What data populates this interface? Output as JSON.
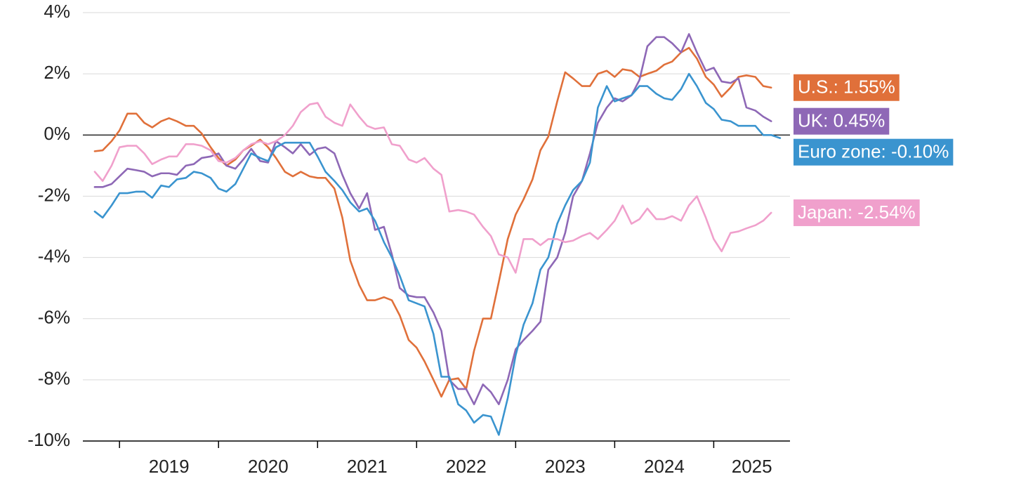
{
  "chart_data": {
    "type": "line",
    "x": [
      2018.75,
      2018.83,
      2018.92,
      2019.0,
      2019.08,
      2019.17,
      2019.25,
      2019.33,
      2019.42,
      2019.5,
      2019.58,
      2019.67,
      2019.75,
      2019.83,
      2019.92,
      2020.0,
      2020.08,
      2020.17,
      2020.25,
      2020.33,
      2020.42,
      2020.5,
      2020.58,
      2020.67,
      2020.75,
      2020.83,
      2020.92,
      2021.0,
      2021.08,
      2021.17,
      2021.25,
      2021.33,
      2021.42,
      2021.5,
      2021.58,
      2021.67,
      2021.75,
      2021.83,
      2021.92,
      2022.0,
      2022.08,
      2022.17,
      2022.25,
      2022.33,
      2022.42,
      2022.5,
      2022.58,
      2022.67,
      2022.75,
      2022.83,
      2022.92,
      2023.0,
      2023.08,
      2023.17,
      2023.25,
      2023.33,
      2023.42,
      2023.5,
      2023.58,
      2023.67,
      2023.75,
      2023.83,
      2023.92,
      2024.0,
      2024.08,
      2024.17,
      2024.25,
      2024.33,
      2024.42,
      2024.5,
      2024.58,
      2024.67,
      2024.75,
      2024.83,
      2024.92,
      2025.0,
      2025.08,
      2025.17,
      2025.25,
      2025.33,
      2025.42,
      2025.5,
      2025.58,
      2025.67
    ],
    "series": [
      {
        "name": "U.S.: 1.55%",
        "color": "#e0703a",
        "values": [
          -0.53,
          -0.5,
          -0.2,
          0.15,
          0.7,
          0.7,
          0.4,
          0.25,
          0.45,
          0.55,
          0.45,
          0.3,
          0.3,
          0.05,
          -0.4,
          -0.75,
          -1.0,
          -0.8,
          -0.5,
          -0.35,
          -0.15,
          -0.4,
          -0.75,
          -1.2,
          -1.35,
          -1.2,
          -1.35,
          -1.4,
          -1.4,
          -1.75,
          -2.7,
          -4.1,
          -4.9,
          -5.4,
          -5.4,
          -5.3,
          -5.4,
          -5.9,
          -6.7,
          -6.95,
          -7.4,
          -8.0,
          -8.55,
          -8.0,
          -7.95,
          -8.3,
          -7.05,
          -6.0,
          -6.0,
          -4.8,
          -3.4,
          -2.6,
          -2.1,
          -1.45,
          -0.5,
          -0.05,
          1.1,
          2.05,
          1.85,
          1.6,
          1.6,
          2.0,
          2.1,
          1.9,
          2.15,
          2.1,
          1.9,
          2.0,
          2.1,
          2.3,
          2.4,
          2.7,
          2.85,
          2.5,
          1.9,
          1.65,
          1.25,
          1.55,
          1.9,
          1.95,
          1.9,
          1.6,
          1.55,
          null
        ]
      },
      {
        "name": "UK: 0.45%",
        "color": "#8e68b6",
        "values": [
          -1.7,
          -1.7,
          -1.6,
          -1.35,
          -1.1,
          -1.15,
          -1.2,
          -1.35,
          -1.25,
          -1.25,
          -1.3,
          -1.0,
          -0.95,
          -0.75,
          -0.7,
          -0.6,
          -1.0,
          -1.1,
          -0.8,
          -0.45,
          -0.85,
          -0.9,
          -0.2,
          -0.4,
          -0.6,
          -0.3,
          -0.65,
          -0.45,
          -0.4,
          -0.6,
          -1.3,
          -1.9,
          -2.4,
          -1.9,
          -3.1,
          -3.0,
          -3.9,
          -5.0,
          -5.25,
          -5.3,
          -5.3,
          -5.8,
          -6.4,
          -8.0,
          -8.3,
          -8.3,
          -8.8,
          -8.15,
          -8.4,
          -8.8,
          -8.0,
          -7.0,
          -6.7,
          -6.4,
          -6.1,
          -4.4,
          -4.0,
          -3.2,
          -2.0,
          -1.5,
          -0.6,
          0.4,
          0.9,
          1.2,
          1.1,
          1.3,
          1.8,
          2.9,
          3.2,
          3.2,
          3.0,
          2.7,
          3.3,
          2.7,
          2.1,
          2.2,
          1.75,
          1.7,
          1.85,
          0.9,
          0.8,
          0.6,
          0.45,
          null
        ]
      },
      {
        "name": "Euro zone: -0.10%",
        "color": "#3a94cf",
        "values": [
          -2.5,
          -2.7,
          -2.3,
          -1.9,
          -1.9,
          -1.85,
          -1.85,
          -2.05,
          -1.65,
          -1.7,
          -1.45,
          -1.4,
          -1.2,
          -1.25,
          -1.4,
          -1.75,
          -1.85,
          -1.6,
          -1.1,
          -0.6,
          -0.75,
          -0.85,
          -0.4,
          -0.25,
          -0.25,
          -0.25,
          -0.25,
          -0.7,
          -1.2,
          -1.5,
          -1.8,
          -2.2,
          -2.5,
          -2.4,
          -2.8,
          -3.5,
          -4.0,
          -4.6,
          -5.4,
          -5.5,
          -5.6,
          -6.5,
          -7.9,
          -7.9,
          -8.8,
          -9.0,
          -9.4,
          -9.15,
          -9.2,
          -9.8,
          -8.6,
          -7.2,
          -6.2,
          -5.5,
          -4.4,
          -4.0,
          -2.9,
          -2.3,
          -1.8,
          -1.5,
          -0.9,
          0.9,
          1.6,
          1.1,
          1.2,
          1.3,
          1.6,
          1.6,
          1.35,
          1.2,
          1.15,
          1.5,
          2.0,
          1.6,
          1.05,
          0.85,
          0.5,
          0.45,
          0.3,
          0.3,
          0.3,
          0.0,
          0.0,
          -0.1
        ]
      },
      {
        "name": "Japan: -2.54%",
        "color": "#f0a0cc",
        "values": [
          -1.2,
          -1.5,
          -1.0,
          -0.4,
          -0.35,
          -0.35,
          -0.6,
          -0.95,
          -0.8,
          -0.7,
          -0.7,
          -0.3,
          -0.3,
          -0.35,
          -0.5,
          -0.85,
          -0.9,
          -0.75,
          -0.5,
          -0.3,
          -0.2,
          -0.3,
          -0.2,
          0.0,
          0.3,
          0.75,
          1.0,
          1.05,
          0.6,
          0.4,
          0.3,
          1.0,
          0.6,
          0.3,
          0.2,
          0.25,
          -0.3,
          -0.35,
          -0.8,
          -0.9,
          -0.75,
          -1.1,
          -1.3,
          -2.5,
          -2.45,
          -2.5,
          -2.6,
          -3.0,
          -3.3,
          -3.9,
          -4.0,
          -4.5,
          -3.4,
          -3.4,
          -3.6,
          -3.4,
          -3.4,
          -3.5,
          -3.45,
          -3.3,
          -3.2,
          -3.4,
          -3.1,
          -2.8,
          -2.3,
          -2.9,
          -2.75,
          -2.4,
          -2.75,
          -2.75,
          -2.65,
          -2.8,
          -2.3,
          -2.0,
          -2.7,
          -3.4,
          -3.8,
          -3.2,
          -3.15,
          -3.05,
          -2.95,
          -2.8,
          -2.54,
          null
        ]
      }
    ],
    "xlim": [
      2018.63,
      2025.77
    ],
    "xticks": [
      2019,
      2020,
      2021,
      2022,
      2023,
      2024,
      2025
    ],
    "ylim": [
      -10,
      4
    ],
    "yticks": [
      {
        "value": -10,
        "label": "-10%"
      },
      {
        "value": -8,
        "label": "-8%"
      },
      {
        "value": -6,
        "label": "-6%"
      },
      {
        "value": -4,
        "label": "-4%"
      },
      {
        "value": -2,
        "label": "-2%"
      },
      {
        "value": 0,
        "label": "0%"
      },
      {
        "value": 2,
        "label": "2%"
      },
      {
        "value": 4,
        "label": "4%"
      }
    ],
    "grid": true
  }
}
